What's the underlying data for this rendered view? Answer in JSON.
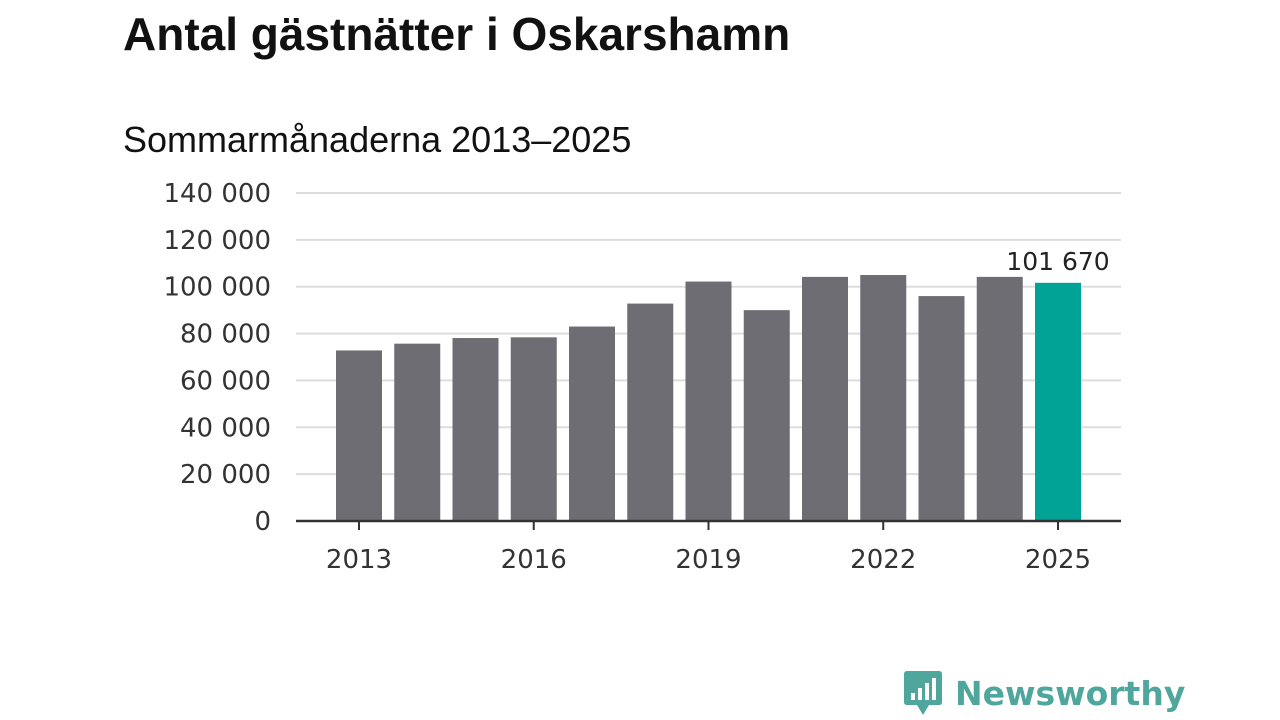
{
  "title": "Antal gästnätter i Oskarshamn",
  "subtitle": "Sommarmånaderna 2013–2025",
  "brand": {
    "name": "Newsworthy",
    "icon": "newsworthy-logo-icon",
    "color": "#4ea69d"
  },
  "colors": {
    "bar": "#6e6d73",
    "highlight": "#00a396",
    "grid": "#dddddd",
    "axis": "#333333"
  },
  "chart_data": {
    "type": "bar",
    "title": "Sommarmånaderna 2013–2025",
    "xlabel": "",
    "ylabel": "",
    "categories": [
      "2013",
      "2014",
      "2015",
      "2016",
      "2017",
      "2018",
      "2019",
      "2020",
      "2021",
      "2022",
      "2023",
      "2024",
      "2025"
    ],
    "values": [
      72800,
      75700,
      78100,
      78400,
      83000,
      92800,
      102200,
      90000,
      104200,
      105000,
      96000,
      104200,
      101670
    ],
    "x_tick_labels": [
      "2013",
      "2016",
      "2019",
      "2022",
      "2025"
    ],
    "y_ticks": [
      0,
      20000,
      40000,
      60000,
      80000,
      100000,
      120000,
      140000
    ],
    "y_tick_labels": [
      "0",
      "20 000",
      "40 000",
      "60 000",
      "80 000",
      "100 000",
      "120 000",
      "140 000"
    ],
    "ylim": [
      0,
      140000
    ],
    "grid": true,
    "legend": "none",
    "highlight_category": "2025",
    "annotations": [
      {
        "category": "2025",
        "text": "101 670"
      }
    ]
  }
}
